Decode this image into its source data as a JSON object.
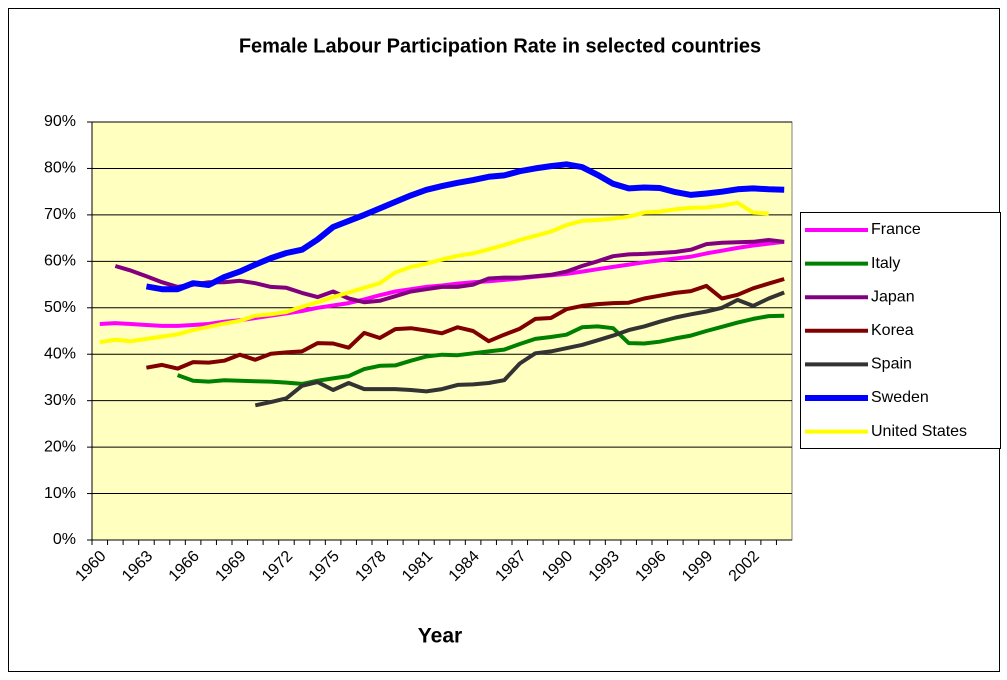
{
  "chart_data": {
    "type": "line",
    "title": "Female Labour Participation Rate in selected countries",
    "x_label": "Year",
    "categories": [
      "1960",
      null,
      null,
      "1963",
      null,
      null,
      "1966",
      null,
      null,
      "1969",
      null,
      null,
      "1972",
      null,
      null,
      "1975",
      null,
      null,
      "1978",
      null,
      null,
      "1981",
      null,
      null,
      "1984",
      null,
      null,
      "1987",
      null,
      null,
      "1990",
      null,
      null,
      "1993",
      null,
      null,
      "1996",
      null,
      null,
      "1999",
      null,
      null,
      "2002",
      null,
      null
    ],
    "ylim": [
      0,
      90
    ],
    "yticks": [
      {
        "value": 0,
        "label": "0%"
      },
      {
        "value": 10,
        "label": "10%"
      },
      {
        "value": 20,
        "label": "20%"
      },
      {
        "value": 30,
        "label": "30%"
      },
      {
        "value": 40,
        "label": "40%"
      },
      {
        "value": 50,
        "label": "50%"
      },
      {
        "value": 60,
        "label": "60%"
      },
      {
        "value": 70,
        "label": "70%"
      },
      {
        "value": 80,
        "label": "80%"
      },
      {
        "value": 90,
        "label": "90%"
      }
    ],
    "grid": true,
    "legend": "right",
    "series": [
      {
        "name": "France",
        "color": "#ff00ff",
        "width": 4,
        "values": [
          46.5,
          46.7,
          46.5,
          46.3,
          46.1,
          46.1,
          46.3,
          46.5,
          47,
          47.3,
          47.8,
          48.3,
          48.8,
          49.3,
          50,
          50.5,
          51,
          51.8,
          52.7,
          53.5,
          54,
          54.5,
          54.8,
          55.2,
          55.5,
          55.7,
          56,
          56.3,
          56.7,
          57,
          57.3,
          57.8,
          58.3,
          58.8,
          59.3,
          59.8,
          60.2,
          60.6,
          61,
          61.7,
          62.3,
          62.9,
          63.4,
          63.8,
          64.2
        ]
      },
      {
        "name": "Italy",
        "color": "#008000",
        "width": 4,
        "values": [
          null,
          null,
          null,
          null,
          null,
          35.5,
          34.3,
          34.1,
          34.4,
          34.3,
          34.2,
          34.1,
          33.9,
          33.6,
          34.3,
          34.8,
          35.3,
          36.8,
          37.5,
          37.6,
          38.6,
          39.5,
          39.9,
          39.8,
          40.2,
          40.6,
          41,
          42.2,
          43.3,
          43.7,
          44.2,
          45.8,
          46,
          45.6,
          42.4,
          42.3,
          42.7,
          43.4,
          44,
          45,
          45.9,
          46.8,
          47.6,
          48.2,
          48.3
        ]
      },
      {
        "name": "Japan",
        "color": "#800080",
        "width": 4,
        "values": [
          null,
          59,
          58,
          56.8,
          55.5,
          54.5,
          55,
          55.5,
          55.5,
          55.8,
          55.3,
          54.5,
          54.3,
          53.2,
          52.3,
          53.5,
          52,
          51.2,
          51.5,
          52.5,
          53.5,
          54,
          54.5,
          54.5,
          55,
          56.3,
          56.5,
          56.5,
          56.8,
          57.1,
          57.8,
          59,
          60,
          61.1,
          61.5,
          61.6,
          61.8,
          62,
          62.5,
          63.7,
          64,
          64.1,
          64.2,
          64.6,
          64.2
        ]
      },
      {
        "name": "Korea",
        "color": "#800000",
        "width": 4,
        "values": [
          null,
          null,
          null,
          37.1,
          37.7,
          36.9,
          38.3,
          38.2,
          38.6,
          39.9,
          38.8,
          40.1,
          40.4,
          40.6,
          42.4,
          42.3,
          41.4,
          44.6,
          43.5,
          45.4,
          45.6,
          45.1,
          44.5,
          45.8,
          45,
          42.8,
          44.2,
          45.5,
          47.6,
          47.8,
          49.7,
          50.4,
          50.8,
          51,
          51.1,
          52,
          52.6,
          53.2,
          53.6,
          54.7,
          52,
          52.8,
          54.2,
          55.2,
          56.2
        ]
      },
      {
        "name": "Spain",
        "color": "#333333",
        "width": 4,
        "values": [
          null,
          null,
          null,
          null,
          null,
          null,
          null,
          null,
          null,
          null,
          29,
          29.7,
          30.5,
          33.2,
          34,
          32.3,
          33.8,
          32.5,
          32.5,
          32.5,
          32.3,
          32,
          32.5,
          33.4,
          33.5,
          33.8,
          34.4,
          38,
          40.2,
          40.6,
          41.3,
          42,
          43,
          44,
          45.2,
          46,
          47,
          47.9,
          48.6,
          49.2,
          50,
          51.7,
          50.4,
          52,
          53.3
        ]
      },
      {
        "name": "Sweden",
        "color": "#0000ff",
        "width": 6,
        "values": [
          null,
          null,
          null,
          54.6,
          54,
          54,
          55.3,
          54.9,
          56.6,
          57.8,
          59.3,
          60.7,
          61.8,
          62.5,
          64.7,
          67.4,
          68.7,
          70,
          71.4,
          72.8,
          74.2,
          75.4,
          76.2,
          76.9,
          77.5,
          78.2,
          78.5,
          79.4,
          80,
          80.5,
          80.9,
          80.3,
          78.6,
          76.7,
          75.7,
          75.9,
          75.8,
          74.9,
          74.3,
          74.6,
          75,
          75.5,
          75.7,
          75.5,
          75.4
        ]
      },
      {
        "name": "United States",
        "color": "#ffff00",
        "width": 4,
        "values": [
          42.6,
          43.1,
          42.8,
          43.3,
          43.8,
          44.3,
          45.2,
          45.9,
          46.6,
          47.2,
          48.3,
          48.6,
          49.1,
          50.2,
          51.2,
          52.3,
          53.3,
          54.3,
          55.3,
          57.6,
          58.8,
          59.5,
          60.4,
          61.2,
          61.7,
          62.6,
          63.5,
          64.6,
          65.5,
          66.4,
          67.8,
          68.7,
          68.9,
          69.2,
          69.6,
          70.5,
          70.7,
          71.2,
          71.5,
          71.6,
          72,
          72.6,
          70.5,
          70.3,
          null
        ]
      }
    ]
  }
}
